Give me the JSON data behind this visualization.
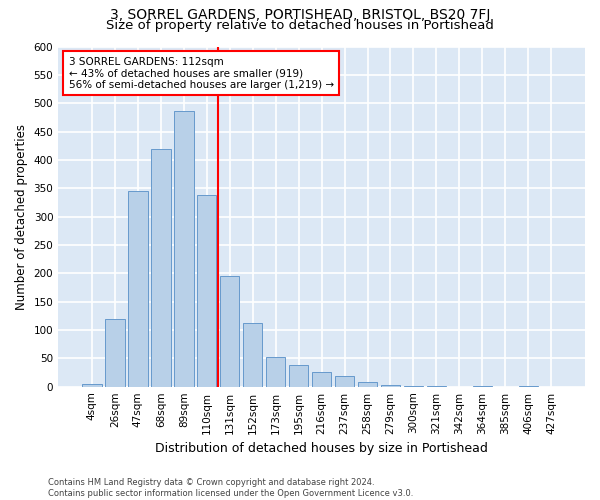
{
  "title": "3, SORREL GARDENS, PORTISHEAD, BRISTOL, BS20 7FJ",
  "subtitle": "Size of property relative to detached houses in Portishead",
  "xlabel": "Distribution of detached houses by size in Portishead",
  "ylabel": "Number of detached properties",
  "categories": [
    "4sqm",
    "26sqm",
    "47sqm",
    "68sqm",
    "89sqm",
    "110sqm",
    "131sqm",
    "152sqm",
    "173sqm",
    "195sqm",
    "216sqm",
    "237sqm",
    "258sqm",
    "279sqm",
    "300sqm",
    "321sqm",
    "342sqm",
    "364sqm",
    "385sqm",
    "406sqm",
    "427sqm"
  ],
  "values": [
    5,
    120,
    345,
    420,
    487,
    338,
    195,
    112,
    53,
    38,
    26,
    19,
    8,
    3,
    1,
    2,
    0,
    1,
    0,
    1,
    0
  ],
  "bar_color": "#b8d0e8",
  "bar_edge_color": "#6699cc",
  "annotation_text": "3 SORREL GARDENS: 112sqm\n← 43% of detached houses are smaller (919)\n56% of semi-detached houses are larger (1,219) →",
  "annotation_box_color": "white",
  "annotation_box_edge_color": "red",
  "vline_color": "red",
  "ylim": [
    0,
    600
  ],
  "yticks": [
    0,
    50,
    100,
    150,
    200,
    250,
    300,
    350,
    400,
    450,
    500,
    550,
    600
  ],
  "background_color": "#dce8f5",
  "grid_color": "white",
  "footer": "Contains HM Land Registry data © Crown copyright and database right 2024.\nContains public sector information licensed under the Open Government Licence v3.0.",
  "title_fontsize": 10,
  "subtitle_fontsize": 9.5,
  "xlabel_fontsize": 9,
  "ylabel_fontsize": 8.5,
  "tick_fontsize": 7.5,
  "annot_fontsize": 7.5,
  "footer_fontsize": 6
}
